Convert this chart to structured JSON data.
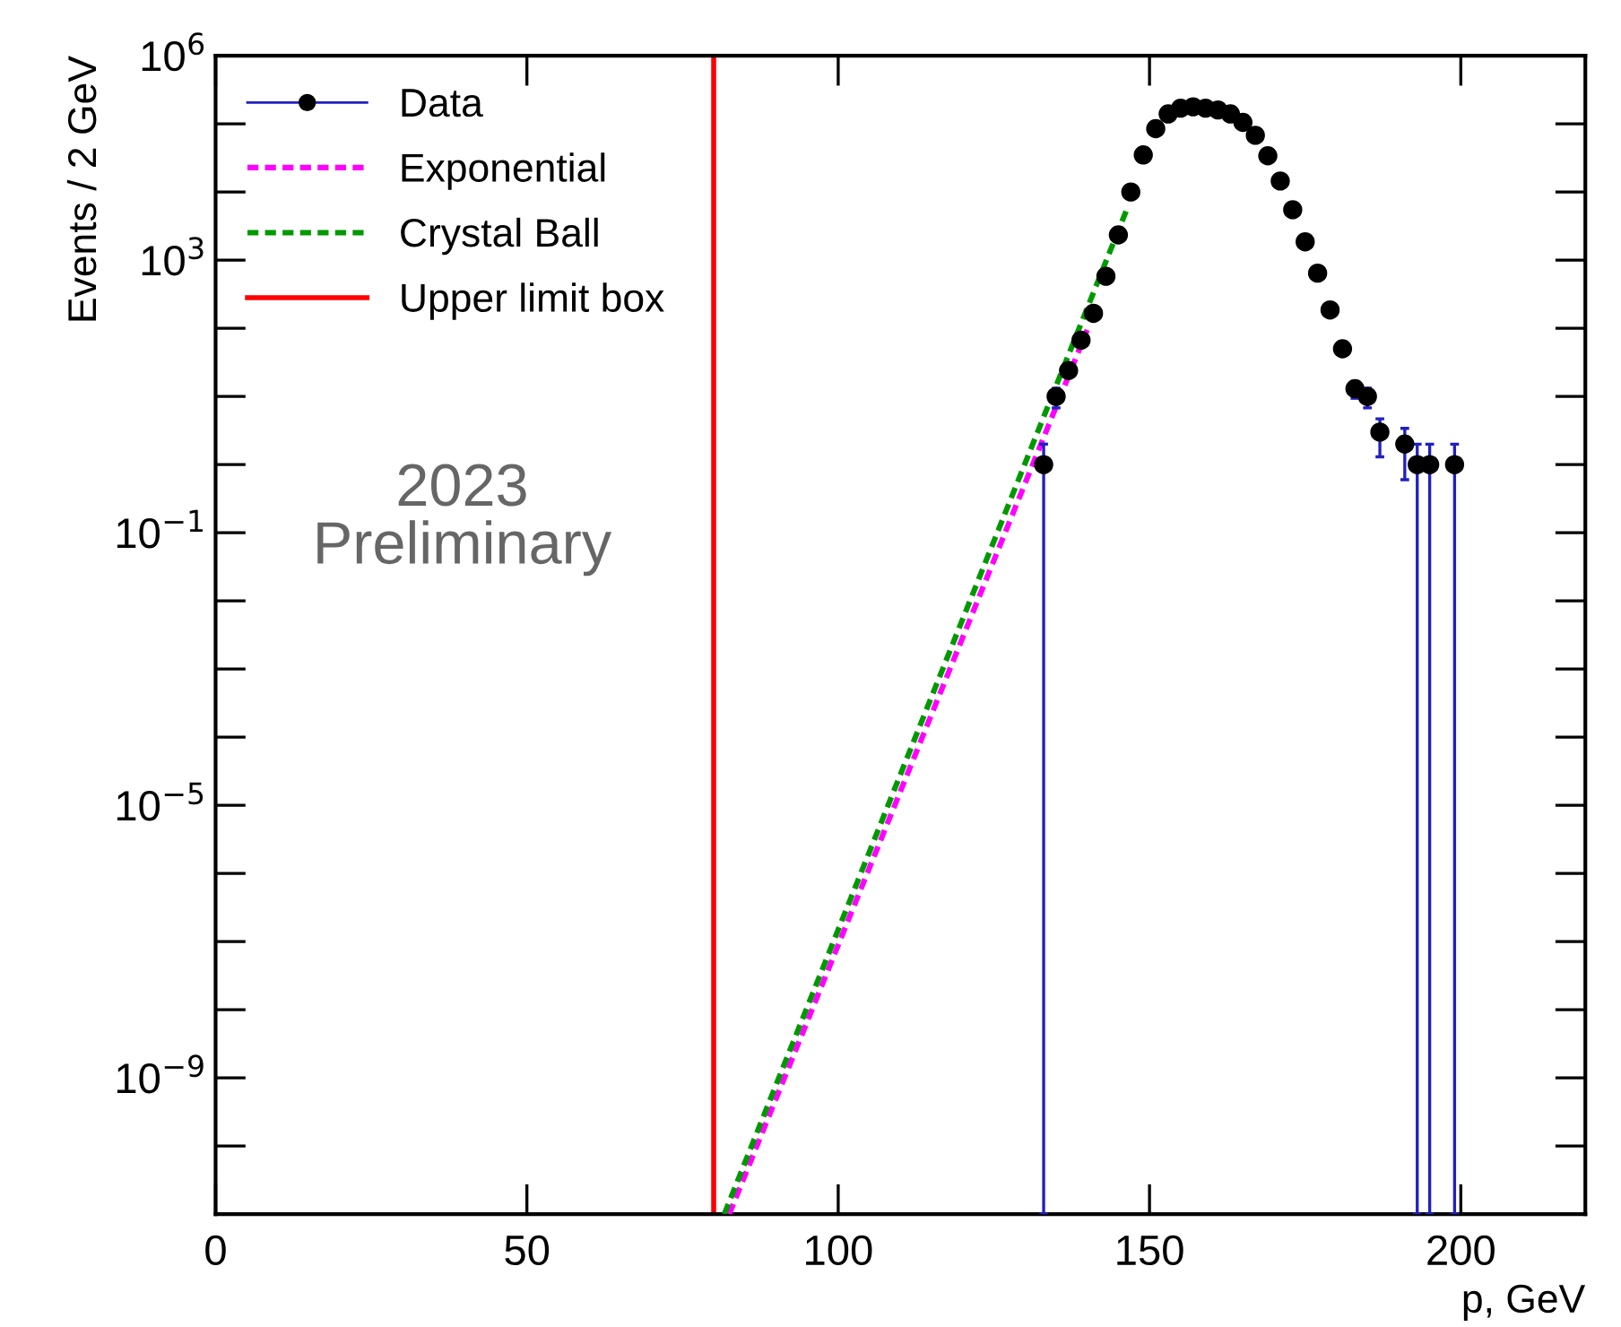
{
  "chart_data": {
    "type": "scatter",
    "xlabel": "p, GeV",
    "ylabel": "Events / 2 GeV",
    "log": "y",
    "marker": "circle",
    "legend": "top left",
    "grid": false,
    "xlim": [
      0,
      220
    ],
    "xticks": [
      0,
      50,
      100,
      150,
      200
    ],
    "ylim": [
      1e-11,
      1000000.0
    ],
    "yticks": [
      {
        "value": 1e-09,
        "label": "10$^{−9}$"
      },
      {
        "value": 1e-05,
        "label": "10$^{−5}$"
      },
      {
        "value": 0.1,
        "label": "10$^{−1}$"
      },
      {
        "value": 1000,
        "label": "10$^{3}$"
      },
      {
        "value": 1000000,
        "label": "10$^{6}$"
      }
    ],
    "series": [
      {
        "name": "Data",
        "color": "#000000",
        "x": [
          133,
          135,
          137,
          139,
          141,
          143,
          145,
          147,
          149,
          151,
          153,
          155,
          157,
          159,
          161,
          163,
          165,
          167,
          169,
          171,
          173,
          175,
          177,
          179,
          181,
          183,
          185,
          187,
          191,
          193,
          195,
          199
        ],
        "values": [
          1,
          10,
          24,
          67,
          166,
          580,
          2350,
          10000,
          35000,
          85000,
          140000,
          170000,
          178000,
          170000,
          160000,
          140000,
          105000,
          68000,
          34000,
          14500,
          5500,
          1860,
          645,
          186,
          50,
          13,
          10,
          3,
          2,
          1,
          1,
          1
        ],
        "errors": [
          [
            0.99999999999,
            1
          ],
          3.2,
          null,
          null,
          null,
          null,
          null,
          null,
          null,
          null,
          null,
          null,
          null,
          null,
          null,
          null,
          null,
          null,
          null,
          null,
          null,
          null,
          null,
          null,
          null,
          3.6,
          3.2,
          1.7,
          1.4,
          [
            0.99999999999,
            1
          ],
          [
            0.99999999999,
            1
          ],
          [
            0.99999999999,
            1
          ]
        ]
      },
      {
        "name": "Exponential",
        "type": "line",
        "color": "#ff00ff",
        "line_style": "dashed",
        "marker": "none",
        "x": [
          82.5,
          140
        ],
        "values": [
          1e-11,
          95
        ]
      },
      {
        "name": "Crystal Ball",
        "type": "line",
        "color": "#009900",
        "line_style": "dashed",
        "marker": "none",
        "x": [
          81.7,
          146.4
        ],
        "values": [
          1e-11,
          5700
        ]
      }
    ],
    "ref_lines": [
      {
        "axis": "x",
        "value": 80,
        "label": "Upper limit box",
        "color": "#ff0000",
        "line_style": "solid"
      }
    ],
    "annotations": [
      "2023\nPreliminary"
    ]
  }
}
